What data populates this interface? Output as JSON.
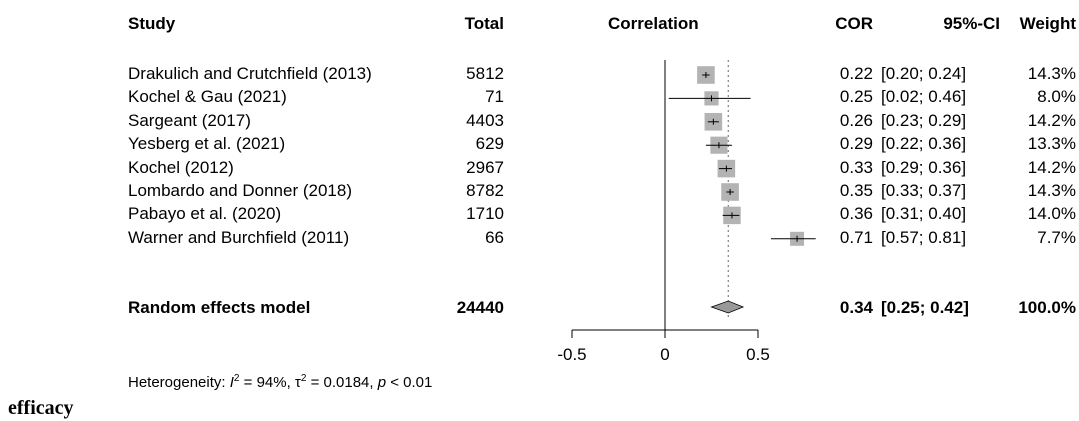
{
  "headers": {
    "study": "Study",
    "total": "Total",
    "correlation": "Correlation",
    "cor": "COR",
    "ci": "95%-CI",
    "weight": "Weight"
  },
  "studies": [
    {
      "study": "Drakulich and Crutchfield (2013)",
      "total": "5812",
      "cor": "0.22",
      "ci": "[0.20; 0.24]",
      "weight": "14.3%"
    },
    {
      "study": "Kochel & Gau (2021)",
      "total": "71",
      "cor": "0.25",
      "ci": "[0.02; 0.46]",
      "weight": "8.0%"
    },
    {
      "study": "Sargeant (2017)",
      "total": "4403",
      "cor": "0.26",
      "ci": "[0.23; 0.29]",
      "weight": "14.2%"
    },
    {
      "study": "Yesberg et al. (2021)",
      "total": "629",
      "cor": "0.29",
      "ci": "[0.22; 0.36]",
      "weight": "13.3%"
    },
    {
      "study": "Kochel (2012)",
      "total": "2967",
      "cor": "0.33",
      "ci": "[0.29; 0.36]",
      "weight": "14.2%"
    },
    {
      "study": "Lombardo and Donner (2018)",
      "total": "8782",
      "cor": "0.35",
      "ci": "[0.33; 0.37]",
      "weight": "14.3%"
    },
    {
      "study": "Pabayo et al. (2020)",
      "total": "1710",
      "cor": "0.36",
      "ci": "[0.31; 0.40]",
      "weight": "14.0%"
    },
    {
      "study": "Warner and Burchfield (2011)",
      "total": "66",
      "cor": "0.71",
      "ci": "[0.57; 0.81]",
      "weight": "7.7%"
    }
  ],
  "summary": {
    "study": "Random effects model",
    "total": "24440",
    "cor": "0.34",
    "ci": "[0.25; 0.42]",
    "weight": "100.0%"
  },
  "heterogeneity": {
    "prefix": "Heterogeneity: ",
    "i2_symbol": "I",
    "i2_sup": "2",
    "i2_value": " = 94%, ",
    "tau2_symbol": "τ",
    "tau2_sup": "2",
    "tau2_value": " = 0.0184, ",
    "p_symbol": "p",
    "p_value": " < 0.01"
  },
  "caption": "efficacy",
  "chart_data": {
    "type": "forest",
    "xlim": [
      -0.5,
      0.5
    ],
    "ticks": [
      -0.5,
      0,
      0.5
    ],
    "tick_labels": [
      "-0.5",
      "0",
      "0.5"
    ],
    "null_line": 0,
    "pooled_line": 0.34,
    "points": [
      {
        "cor": 0.22,
        "lo": 0.2,
        "hi": 0.24,
        "weight": 14.3
      },
      {
        "cor": 0.25,
        "lo": 0.02,
        "hi": 0.46,
        "weight": 8.0
      },
      {
        "cor": 0.26,
        "lo": 0.23,
        "hi": 0.29,
        "weight": 14.2
      },
      {
        "cor": 0.29,
        "lo": 0.22,
        "hi": 0.36,
        "weight": 13.3
      },
      {
        "cor": 0.33,
        "lo": 0.29,
        "hi": 0.36,
        "weight": 14.2
      },
      {
        "cor": 0.35,
        "lo": 0.33,
        "hi": 0.37,
        "weight": 14.3
      },
      {
        "cor": 0.36,
        "lo": 0.31,
        "hi": 0.4,
        "weight": 14.0
      },
      {
        "cor": 0.71,
        "lo": 0.57,
        "hi": 0.81,
        "weight": 7.7
      }
    ],
    "summary": {
      "cor": 0.34,
      "lo": 0.25,
      "hi": 0.42
    },
    "colors": {
      "box": "#b3b3b3",
      "line": "#000000",
      "diamond": "#999999",
      "pooled": "#666666"
    }
  }
}
